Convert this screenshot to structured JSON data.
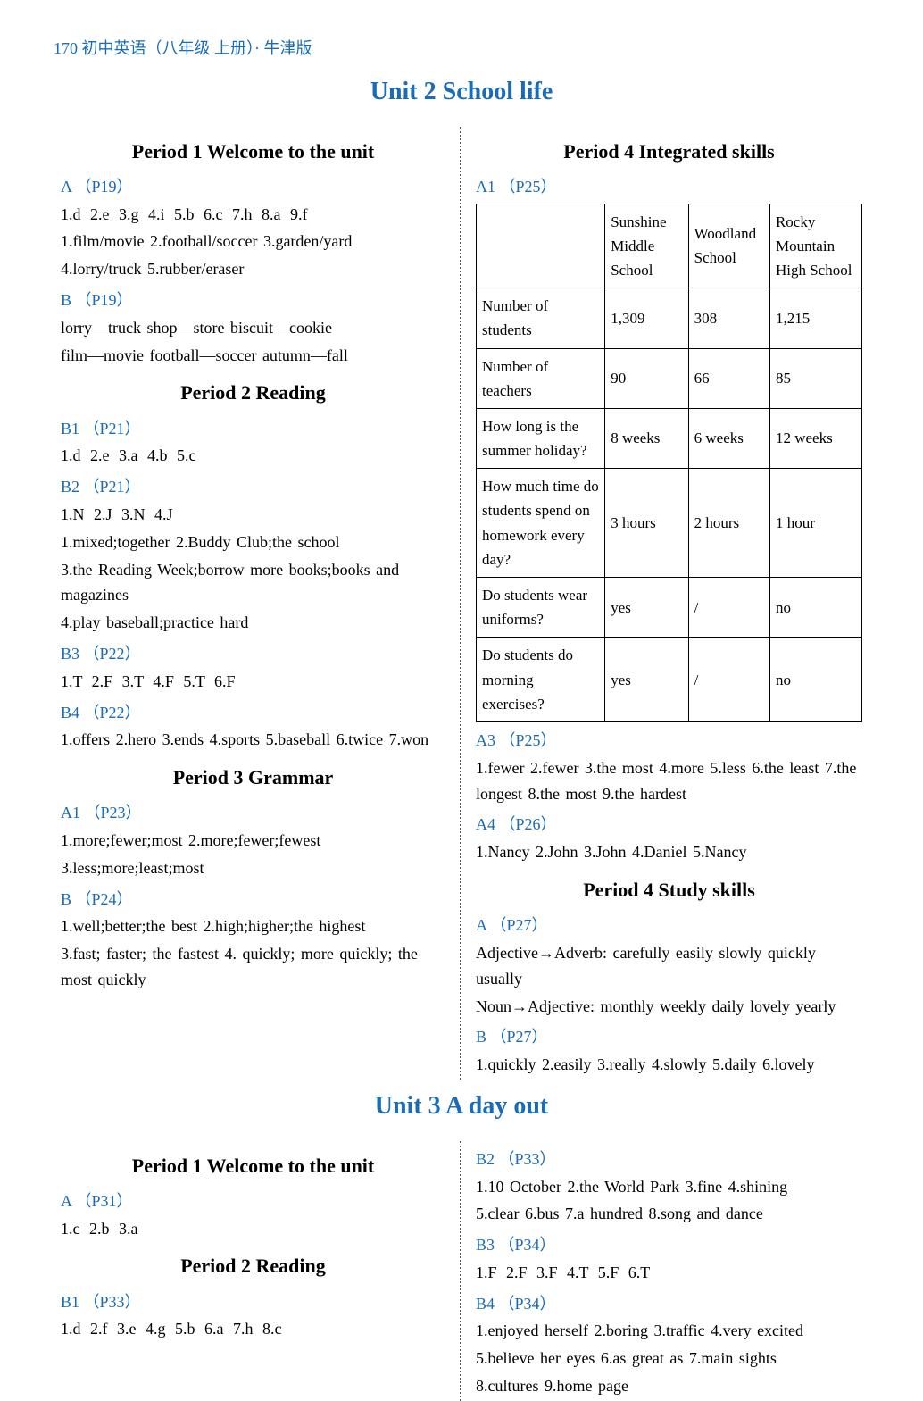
{
  "header": "170 初中英语（八年级  上册）· 牛津版",
  "unit2": {
    "title": "Unit 2   School life",
    "left": {
      "period1": {
        "title": "Period 1   Welcome to the unit",
        "A_label": "A （P19）",
        "A_line1": "1.d  2.e  3.g  4.i  5.b  6.c  7.h  8.a  9.f",
        "A_line2": "1.film/movie     2.football/soccer     3.garden/yard",
        "A_line3": "4.lorry/truck     5.rubber/eraser",
        "B_label": "B （P19）",
        "B_line1": "lorry—truck       shop—store          biscuit—cookie",
        "B_line2": "film—movie       football—soccer     autumn—fall"
      },
      "period2": {
        "title": "Period 2   Reading",
        "B1_label": "B1 （P21）",
        "B1_line": "1.d  2.e  3.a  4.b  5.c",
        "B2_label": "B2 （P21）",
        "B2_line1": "1.N  2.J  3.N  4.J",
        "B2_line2": "1.mixed;together  2.Buddy Club;the school",
        "B2_line3": "3.the Reading Week;borrow more books;books and magazines",
        "B2_line4": "4.play baseball;practice hard",
        "B3_label": "B3 （P22）",
        "B3_line": "1.T  2.F  3.T  4.F  5.T  6.F",
        "B4_label": "B4 （P22）",
        "B4_line": "1.offers  2.hero  3.ends  4.sports  5.baseball  6.twice  7.won"
      },
      "period3": {
        "title": "Period 3   Grammar",
        "A1_label": "A1 （P23）",
        "A1_line1": "1.more;fewer;most  2.more;fewer;fewest",
        "A1_line2": "3.less;more;least;most",
        "B_label": "B （P24）",
        "B_line1": "1.well;better;the best  2.high;higher;the highest",
        "B_line2": "3.fast; faster; the fastest   4. quickly; more quickly; the most quickly"
      }
    },
    "right": {
      "period4a": {
        "title": "Period 4   Integrated skills",
        "A1_label": "A1 （P25）",
        "table": {
          "header": [
            "",
            "Sunshine Middle School",
            "Woodland School",
            "Rocky Mountain High School"
          ],
          "rows": [
            [
              "Number of students",
              "1,309",
              "308",
              "1,215"
            ],
            [
              "Number of teachers",
              "90",
              "66",
              "85"
            ],
            [
              "How long is the summer holiday?",
              "8 weeks",
              "6 weeks",
              "12 weeks"
            ],
            [
              "How much time do students spend on homework every day?",
              "3 hours",
              "2 hours",
              "1 hour"
            ],
            [
              "Do students wear uniforms?",
              "yes",
              "/",
              "no"
            ],
            [
              "Do students do morning exercises?",
              "yes",
              "/",
              "no"
            ]
          ]
        },
        "A3_label": "A3 （P25）",
        "A3_line": "1.fewer  2.fewer  3.the most  4.more  5.less  6.the least  7.the longest  8.the most  9.the hardest",
        "A4_label": "A4 （P26）",
        "A4_line": "1.Nancy  2.John  3.John  4.Daniel  5.Nancy"
      },
      "period4b": {
        "title": "Period 4   Study skills",
        "A_label": "A （P27）",
        "A_line1": "Adjective→Adverb: carefully   easily   slowly   quickly   usually",
        "A_line2": "Noun→Adjective: monthly   weekly   daily   lovely   yearly",
        "B_label": "B （P27）",
        "B_line": "1.quickly  2.easily  3.really  4.slowly  5.daily  6.lovely"
      }
    }
  },
  "unit3": {
    "title": "Unit 3   A day out",
    "left": {
      "period1": {
        "title": "Period 1   Welcome to the unit",
        "A_label": "A （P31）",
        "A_line": "1.c  2.b  3.a"
      },
      "period2": {
        "title": "Period 2   Reading",
        "B1_label": "B1 （P33）",
        "B1_line": "1.d  2.f  3.e  4.g  5.b  6.a  7.h  8.c"
      }
    },
    "right": {
      "B2_label": "B2 （P33）",
      "B2_line1": "1.10 October  2.the World Park  3.fine  4.shining",
      "B2_line2": "5.clear  6.bus  7.a hundred  8.song and dance",
      "B3_label": "B3 （P34）",
      "B3_line": "1.F  2.F  3.F  4.T  5.F  6.T",
      "B4_label": "B4 （P34）",
      "B4_line1": "1.enjoyed herself  2.boring  3.traffic  4.very excited",
      "B4_line2": "5.believe her eyes  6.as great as  7.main sights",
      "B4_line3": "8.cultures  9.home page"
    }
  },
  "colors": {
    "blue": "#1a6bb8",
    "text": "#000000",
    "bg": "#ffffff",
    "border_dotted": "#555555"
  }
}
